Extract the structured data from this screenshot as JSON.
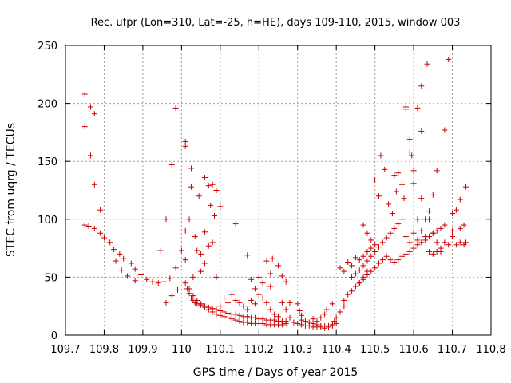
{
  "chart_data": {
    "type": "scatter",
    "title": "Rec. ufpr (Lon=310, Lat=-25, h=HE), days 109-110, 2015, window 003",
    "xlabel": "GPS time / Days of year 2015",
    "ylabel": "STEC from uqrg / TECUs",
    "xlim": [
      109.7,
      110.8
    ],
    "ylim": [
      0,
      250
    ],
    "xticks": [
      "109.7",
      "109.8",
      "109.9",
      "110",
      "110.1",
      "110.2",
      "110.3",
      "110.4",
      "110.5",
      "110.6",
      "110.7",
      "110.8"
    ],
    "yticks": [
      "0",
      "50",
      "100",
      "150",
      "200",
      "250"
    ],
    "grid": true,
    "marker": "+",
    "color": "#cc0000",
    "series": [
      {
        "points": [
          [
            109.75,
            208
          ],
          [
            109.75,
            180
          ],
          [
            109.765,
            197
          ],
          [
            109.765,
            155
          ],
          [
            109.775,
            191
          ],
          [
            109.775,
            130
          ],
          [
            109.79,
            108
          ],
          [
            109.75,
            95
          ],
          [
            109.76,
            94
          ],
          [
            109.775,
            92
          ],
          [
            109.79,
            88
          ],
          [
            109.8,
            84
          ],
          [
            109.815,
            80
          ],
          [
            109.825,
            74
          ],
          [
            109.84,
            70
          ],
          [
            109.85,
            66
          ],
          [
            109.87,
            62
          ],
          [
            109.88,
            57
          ],
          [
            109.895,
            52
          ],
          [
            109.91,
            48
          ],
          [
            109.925,
            46
          ],
          [
            109.94,
            45
          ],
          [
            109.955,
            46
          ],
          [
            109.97,
            49
          ],
          [
            109.985,
            58
          ],
          [
            110.0,
            73
          ],
          [
            110.01,
            90
          ],
          [
            110.02,
            100
          ],
          [
            109.83,
            64
          ],
          [
            109.845,
            56
          ],
          [
            109.86,
            51
          ],
          [
            109.88,
            47
          ],
          [
            109.96,
            100
          ],
          [
            109.975,
            147
          ],
          [
            109.985,
            196
          ],
          [
            109.96,
            28
          ],
          [
            109.975,
            34
          ],
          [
            109.99,
            39
          ],
          [
            109.945,
            73
          ],
          [
            110.01,
            167
          ],
          [
            110.01,
            163
          ],
          [
            110.025,
            144
          ],
          [
            110.025,
            128
          ],
          [
            110.035,
            85
          ],
          [
            110.045,
            120
          ],
          [
            110.06,
            136
          ],
          [
            110.07,
            129
          ],
          [
            110.08,
            130
          ],
          [
            110.09,
            125
          ],
          [
            110.075,
            112
          ],
          [
            110.085,
            103
          ],
          [
            110.1,
            111
          ],
          [
            110.08,
            80
          ],
          [
            110.07,
            77
          ],
          [
            110.06,
            89
          ],
          [
            110.04,
            73
          ],
          [
            110.05,
            70
          ],
          [
            110.06,
            62
          ],
          [
            110.05,
            55
          ],
          [
            110.03,
            50
          ],
          [
            110.01,
            65
          ],
          [
            110.09,
            50
          ],
          [
            110.14,
            96
          ],
          [
            110.17,
            69
          ],
          [
            110.2,
            50
          ],
          [
            110.22,
            64
          ],
          [
            110.235,
            66
          ],
          [
            110.25,
            60
          ],
          [
            110.26,
            51
          ],
          [
            110.27,
            46
          ],
          [
            110.21,
            45
          ],
          [
            110.23,
            42
          ],
          [
            110.18,
            48
          ],
          [
            110.19,
            40
          ],
          [
            110.23,
            53
          ],
          [
            110.01,
            45
          ],
          [
            110.015,
            40
          ],
          [
            110.02,
            36
          ],
          [
            110.025,
            32
          ],
          [
            110.03,
            30
          ],
          [
            110.035,
            28
          ],
          [
            110.04,
            27
          ],
          [
            110.05,
            26
          ],
          [
            110.06,
            25
          ],
          [
            110.07,
            24
          ],
          [
            110.08,
            23
          ],
          [
            110.09,
            22
          ],
          [
            110.1,
            21
          ],
          [
            110.11,
            20
          ],
          [
            110.12,
            19
          ],
          [
            110.13,
            18
          ],
          [
            110.14,
            18
          ],
          [
            110.15,
            17
          ],
          [
            110.16,
            16
          ],
          [
            110.17,
            16
          ],
          [
            110.18,
            15
          ],
          [
            110.19,
            15
          ],
          [
            110.2,
            14
          ],
          [
            110.21,
            14
          ],
          [
            110.22,
            13
          ],
          [
            110.23,
            13
          ],
          [
            110.24,
            13
          ],
          [
            110.25,
            12
          ],
          [
            110.26,
            12
          ],
          [
            110.27,
            12
          ],
          [
            110.02,
            40
          ],
          [
            110.03,
            34
          ],
          [
            110.04,
            30
          ],
          [
            110.05,
            27
          ],
          [
            110.06,
            24
          ],
          [
            110.07,
            22
          ],
          [
            110.08,
            20
          ],
          [
            110.09,
            18
          ],
          [
            110.1,
            17
          ],
          [
            110.11,
            16
          ],
          [
            110.12,
            15
          ],
          [
            110.13,
            14
          ],
          [
            110.14,
            13
          ],
          [
            110.15,
            12
          ],
          [
            110.16,
            11
          ],
          [
            110.17,
            11
          ],
          [
            110.18,
            10
          ],
          [
            110.19,
            10
          ],
          [
            110.2,
            10
          ],
          [
            110.21,
            10
          ],
          [
            110.22,
            9
          ],
          [
            110.23,
            9
          ],
          [
            110.24,
            9
          ],
          [
            110.25,
            9
          ],
          [
            110.26,
            9
          ],
          [
            110.27,
            10
          ],
          [
            110.1,
            25
          ],
          [
            110.11,
            32
          ],
          [
            110.12,
            28
          ],
          [
            110.13,
            35
          ],
          [
            110.14,
            30
          ],
          [
            110.15,
            28
          ],
          [
            110.16,
            25
          ],
          [
            110.17,
            22
          ],
          [
            110.18,
            30
          ],
          [
            110.19,
            27
          ],
          [
            110.2,
            35
          ],
          [
            110.21,
            32
          ],
          [
            110.22,
            28
          ],
          [
            110.23,
            22
          ],
          [
            110.24,
            18
          ],
          [
            110.25,
            16
          ],
          [
            110.26,
            28
          ],
          [
            110.27,
            22
          ],
          [
            110.28,
            28
          ],
          [
            110.28,
            15
          ],
          [
            110.29,
            11
          ],
          [
            110.3,
            27
          ],
          [
            110.305,
            21
          ],
          [
            110.31,
            17
          ],
          [
            110.31,
            13
          ],
          [
            110.32,
            12
          ],
          [
            110.33,
            11
          ],
          [
            110.34,
            10
          ],
          [
            110.35,
            9
          ],
          [
            110.36,
            8
          ],
          [
            110.37,
            8
          ],
          [
            110.38,
            8
          ],
          [
            110.39,
            9
          ],
          [
            110.4,
            10
          ],
          [
            110.3,
            10
          ],
          [
            110.31,
            9
          ],
          [
            110.32,
            8
          ],
          [
            110.33,
            8
          ],
          [
            110.34,
            7
          ],
          [
            110.35,
            7
          ],
          [
            110.36,
            7
          ],
          [
            110.37,
            6
          ],
          [
            110.38,
            7
          ],
          [
            110.39,
            8
          ],
          [
            110.34,
            14
          ],
          [
            110.35,
            12
          ],
          [
            110.36,
            15
          ],
          [
            110.37,
            18
          ],
          [
            110.375,
            22
          ],
          [
            110.39,
            27
          ],
          [
            110.395,
            12
          ],
          [
            110.4,
            15
          ],
          [
            110.41,
            20
          ],
          [
            110.42,
            25
          ],
          [
            110.41,
            58
          ],
          [
            110.42,
            55
          ],
          [
            110.43,
            63
          ],
          [
            110.44,
            60
          ],
          [
            110.45,
            67
          ],
          [
            110.46,
            65
          ],
          [
            110.47,
            68
          ],
          [
            110.48,
            72
          ],
          [
            110.49,
            75
          ],
          [
            110.5,
            78
          ],
          [
            110.42,
            30
          ],
          [
            110.43,
            35
          ],
          [
            110.44,
            38
          ],
          [
            110.45,
            42
          ],
          [
            110.46,
            45
          ],
          [
            110.47,
            48
          ],
          [
            110.48,
            52
          ],
          [
            110.49,
            55
          ],
          [
            110.5,
            58
          ],
          [
            110.51,
            62
          ],
          [
            110.52,
            65
          ],
          [
            110.53,
            68
          ],
          [
            110.54,
            65
          ],
          [
            110.55,
            63
          ],
          [
            110.56,
            65
          ],
          [
            110.57,
            68
          ],
          [
            110.58,
            70
          ],
          [
            110.59,
            72
          ],
          [
            110.6,
            75
          ],
          [
            110.61,
            78
          ],
          [
            110.62,
            80
          ],
          [
            110.63,
            82
          ],
          [
            110.64,
            85
          ],
          [
            110.65,
            88
          ],
          [
            110.66,
            90
          ],
          [
            110.67,
            92
          ],
          [
            110.68,
            95
          ],
          [
            110.44,
            50
          ],
          [
            110.45,
            53
          ],
          [
            110.46,
            56
          ],
          [
            110.47,
            60
          ],
          [
            110.48,
            64
          ],
          [
            110.49,
            68
          ],
          [
            110.5,
            72
          ],
          [
            110.51,
            76
          ],
          [
            110.52,
            80
          ],
          [
            110.53,
            84
          ],
          [
            110.54,
            88
          ],
          [
            110.55,
            92
          ],
          [
            110.56,
            96
          ],
          [
            110.57,
            100
          ],
          [
            110.46,
            45
          ],
          [
            110.47,
            50
          ],
          [
            110.48,
            55
          ],
          [
            110.47,
            95
          ],
          [
            110.48,
            88
          ],
          [
            110.49,
            82
          ],
          [
            110.5,
            134
          ],
          [
            110.51,
            120
          ],
          [
            110.515,
            155
          ],
          [
            110.525,
            143
          ],
          [
            110.535,
            113
          ],
          [
            110.545,
            105
          ],
          [
            110.55,
            138
          ],
          [
            110.555,
            124
          ],
          [
            110.56,
            140
          ],
          [
            110.57,
            130
          ],
          [
            110.575,
            118
          ],
          [
            110.58,
            197
          ],
          [
            110.58,
            195
          ],
          [
            110.59,
            169
          ],
          [
            110.59,
            158
          ],
          [
            110.595,
            155
          ],
          [
            110.6,
            142
          ],
          [
            110.6,
            131
          ],
          [
            110.61,
            196
          ],
          [
            110.62,
            215
          ],
          [
            110.62,
            176
          ],
          [
            110.62,
            118
          ],
          [
            110.63,
            100
          ],
          [
            110.635,
            234
          ],
          [
            110.64,
            107
          ],
          [
            110.65,
            121
          ],
          [
            110.66,
            142
          ],
          [
            110.68,
            177
          ],
          [
            110.69,
            238
          ],
          [
            110.7,
            105
          ],
          [
            110.71,
            108
          ],
          [
            110.72,
            117
          ],
          [
            110.73,
            95
          ],
          [
            110.735,
            128
          ],
          [
            110.61,
            100
          ],
          [
            110.62,
            90
          ],
          [
            110.63,
            85
          ],
          [
            110.64,
            100
          ],
          [
            110.65,
            88
          ],
          [
            110.66,
            80
          ],
          [
            110.67,
            75
          ],
          [
            110.68,
            80
          ],
          [
            110.69,
            78
          ],
          [
            110.7,
            85
          ],
          [
            110.71,
            78
          ],
          [
            110.72,
            80
          ],
          [
            110.73,
            78
          ],
          [
            110.735,
            80
          ],
          [
            110.58,
            85
          ],
          [
            110.59,
            80
          ],
          [
            110.6,
            88
          ],
          [
            110.61,
            82
          ],
          [
            110.64,
            72
          ],
          [
            110.65,
            70
          ],
          [
            110.66,
            72
          ],
          [
            110.67,
            72
          ],
          [
            110.7,
            90
          ],
          [
            110.72,
            92
          ]
        ]
      }
    ]
  }
}
